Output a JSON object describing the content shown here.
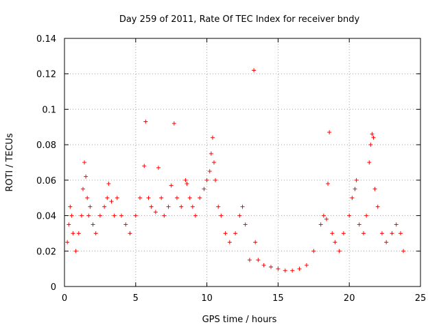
{
  "chart_data": {
    "type": "scatter",
    "title": "Day 259 of 2011, Rate Of TEC Index for receiver bndy",
    "xlabel": "GPS time / hours",
    "ylabel": "ROTI / TECUs",
    "xlim": [
      0,
      25
    ],
    "ylim": [
      0,
      0.14
    ],
    "xticks": [
      0,
      5,
      10,
      15,
      20,
      25
    ],
    "xtick_labels": [
      "0",
      "5",
      "10",
      "15",
      "20",
      "25"
    ],
    "yticks": [
      0,
      0.02,
      0.04,
      0.06,
      0.08,
      0.1,
      0.12,
      0.14
    ],
    "ytick_labels": [
      "0",
      "0.02",
      "0.04",
      "0.06",
      "0.08",
      "0.1",
      "0.12",
      "0.14"
    ],
    "grid": true,
    "marker": "+",
    "color": "#ff0000",
    "series": [
      {
        "points": [
          [
            0.2,
            0.025
          ],
          [
            0.3,
            0.035
          ],
          [
            0.4,
            0.045
          ],
          [
            0.5,
            0.04
          ],
          [
            0.6,
            0.03
          ],
          [
            0.8,
            0.02
          ],
          [
            1.0,
            0.03
          ],
          [
            1.2,
            0.04
          ],
          [
            1.3,
            0.055
          ],
          [
            1.4,
            0.07
          ],
          [
            1.5,
            0.062
          ],
          [
            1.6,
            0.05
          ],
          [
            1.7,
            0.04
          ],
          [
            1.8,
            0.045
          ],
          [
            2.0,
            0.035
          ],
          [
            2.2,
            0.03
          ],
          [
            2.5,
            0.04
          ],
          [
            2.8,
            0.045
          ],
          [
            3.0,
            0.05
          ],
          [
            3.1,
            0.058
          ],
          [
            3.3,
            0.048
          ],
          [
            3.5,
            0.04
          ],
          [
            3.7,
            0.05
          ],
          [
            4.0,
            0.04
          ],
          [
            4.3,
            0.035
          ],
          [
            4.6,
            0.03
          ],
          [
            5.0,
            0.04
          ],
          [
            5.3,
            0.05
          ],
          [
            5.6,
            0.068
          ],
          [
            5.7,
            0.093
          ],
          [
            5.9,
            0.05
          ],
          [
            6.1,
            0.045
          ],
          [
            6.4,
            0.042
          ],
          [
            6.6,
            0.067
          ],
          [
            6.8,
            0.05
          ],
          [
            7.0,
            0.04
          ],
          [
            7.3,
            0.045
          ],
          [
            7.5,
            0.057
          ],
          [
            7.7,
            0.092
          ],
          [
            7.9,
            0.05
          ],
          [
            8.2,
            0.045
          ],
          [
            8.5,
            0.06
          ],
          [
            8.6,
            0.058
          ],
          [
            8.8,
            0.05
          ],
          [
            9.0,
            0.045
          ],
          [
            9.2,
            0.04
          ],
          [
            9.5,
            0.05
          ],
          [
            9.8,
            0.055
          ],
          [
            10.0,
            0.06
          ],
          [
            10.2,
            0.065
          ],
          [
            10.3,
            0.075
          ],
          [
            10.4,
            0.084
          ],
          [
            10.5,
            0.07
          ],
          [
            10.6,
            0.06
          ],
          [
            10.8,
            0.045
          ],
          [
            11.0,
            0.04
          ],
          [
            11.3,
            0.03
          ],
          [
            11.6,
            0.025
          ],
          [
            12.0,
            0.03
          ],
          [
            12.3,
            0.04
          ],
          [
            12.5,
            0.045
          ],
          [
            12.7,
            0.035
          ],
          [
            13.0,
            0.015
          ],
          [
            13.3,
            0.122
          ],
          [
            13.4,
            0.025
          ],
          [
            13.6,
            0.015
          ],
          [
            14.0,
            0.012
          ],
          [
            14.5,
            0.011
          ],
          [
            15.0,
            0.01
          ],
          [
            15.5,
            0.009
          ],
          [
            16.0,
            0.009
          ],
          [
            16.5,
            0.01
          ],
          [
            17.0,
            0.012
          ],
          [
            17.5,
            0.02
          ],
          [
            18.0,
            0.035
          ],
          [
            18.2,
            0.04
          ],
          [
            18.4,
            0.038
          ],
          [
            18.5,
            0.058
          ],
          [
            18.6,
            0.087
          ],
          [
            18.8,
            0.03
          ],
          [
            19.0,
            0.025
          ],
          [
            19.3,
            0.02
          ],
          [
            19.6,
            0.03
          ],
          [
            20.0,
            0.04
          ],
          [
            20.2,
            0.05
          ],
          [
            20.4,
            0.055
          ],
          [
            20.5,
            0.06
          ],
          [
            20.7,
            0.035
          ],
          [
            21.0,
            0.03
          ],
          [
            21.2,
            0.04
          ],
          [
            21.4,
            0.07
          ],
          [
            21.5,
            0.08
          ],
          [
            21.6,
            0.086
          ],
          [
            21.7,
            0.084
          ],
          [
            21.8,
            0.055
          ],
          [
            22.0,
            0.045
          ],
          [
            22.3,
            0.03
          ],
          [
            22.6,
            0.025
          ],
          [
            23.0,
            0.03
          ],
          [
            23.3,
            0.035
          ],
          [
            23.6,
            0.03
          ],
          [
            23.8,
            0.02
          ]
        ]
      }
    ]
  }
}
